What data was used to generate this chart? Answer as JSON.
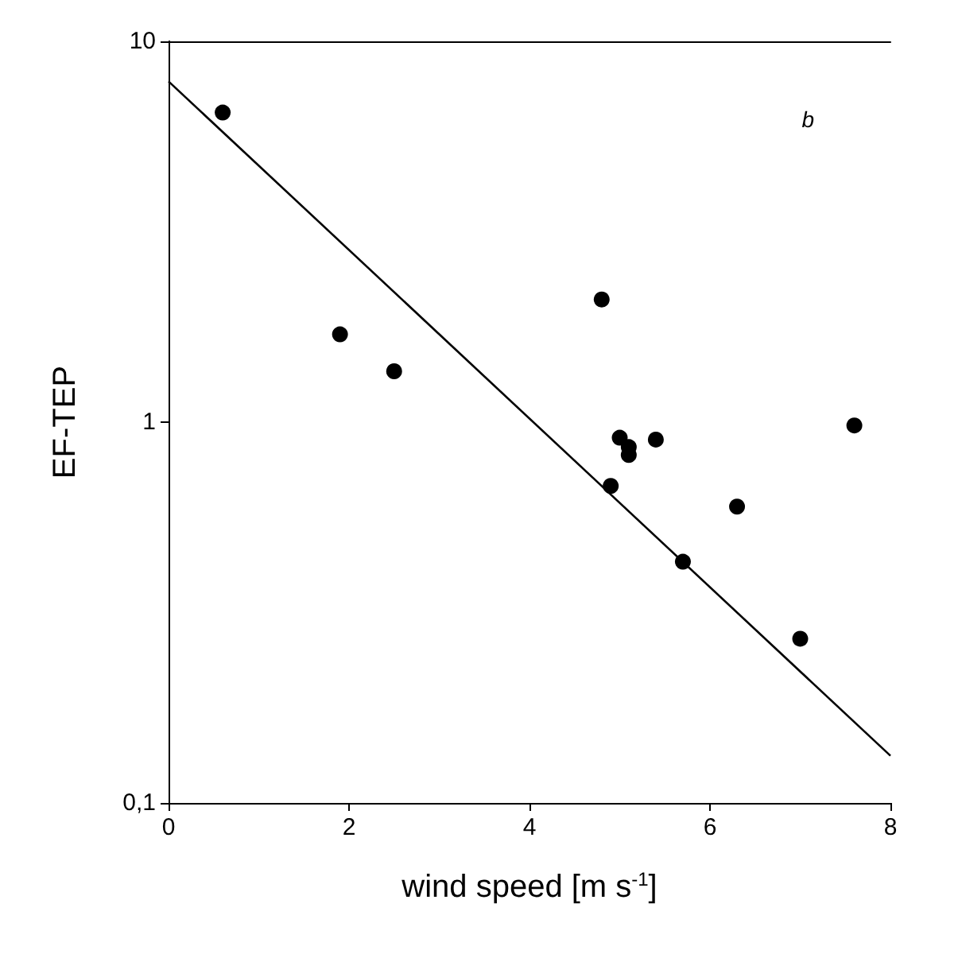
{
  "chart_data": {
    "type": "scatter",
    "xlabel": "wind speed [m s$^{-1}$]",
    "ylabel": "EF-TEP",
    "x": [
      0.6,
      1.9,
      2.5,
      4.8,
      4.9,
      5.0,
      5.1,
      5.1,
      5.4,
      5.7,
      6.3,
      7.0,
      7.6
    ],
    "series": [
      {
        "color": "#000000",
        "values": [
          6.5,
          1.7,
          1.36,
          2.1,
          0.68,
          0.91,
          0.86,
          0.82,
          0.9,
          0.43,
          0.6,
          0.27,
          0.98
        ]
      },
      {
        "type": "line",
        "color": "#000000",
        "marker": "none",
        "x": [
          0,
          8
        ],
        "values": [
          7.85,
          0.133
        ]
      }
    ],
    "log": "y",
    "marker": "circle",
    "line_style": "solid",
    "grid": false,
    "xlim": [
      0,
      8
    ],
    "xticks": [
      0,
      2,
      4,
      6,
      8
    ],
    "ylim": [
      0.1,
      10
    ],
    "yticks": [
      {
        "value": 0.1,
        "label": "0,1"
      },
      1,
      10
    ],
    "annotations": [
      "b"
    ]
  }
}
